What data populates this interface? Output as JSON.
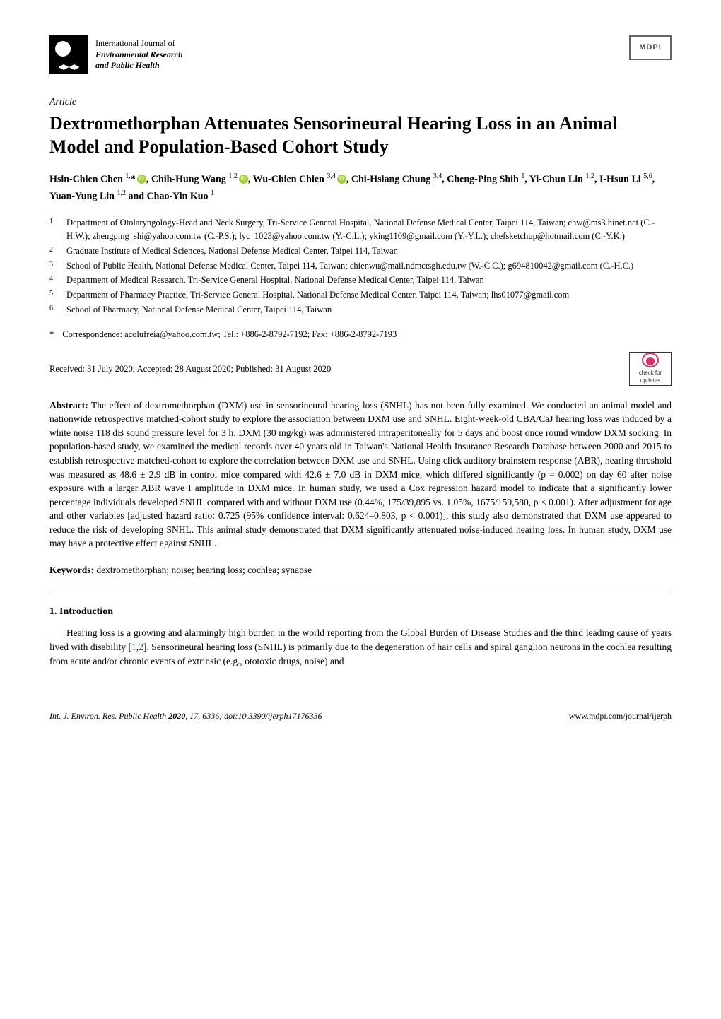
{
  "journal": {
    "line1": "International Journal of",
    "line2": "Environmental Research",
    "line3": "and Public Health",
    "publisher": "MDPI"
  },
  "article_type": "Article",
  "title": "Dextromethorphan Attenuates Sensorineural Hearing Loss in an Animal Model and Population-Based Cohort Study",
  "authors_html": "Hsin-Chien Chen <sup>1,</sup>*<span class='orcid'></span>, Chih-Hung Wang <sup>1,2</sup><span class='orcid'></span>, Wu-Chien Chien <sup>3,4</sup><span class='orcid'></span>, Chi-Hsiang Chung <sup>3,4</sup>, Cheng-Ping Shih <sup>1</sup>, Yi-Chun Lin <sup>1,2</sup>, I-Hsun Li <sup>5,6</sup>, Yuan-Yung Lin <sup>1,2</sup> and Chao-Yin Kuo <sup>1</sup>",
  "affiliations": [
    {
      "num": "1",
      "text": "Department of Otolaryngology-Head and Neck Surgery, Tri-Service General Hospital, National Defense Medical Center, Taipei 114, Taiwan; chw@ms3.hinet.net (C.-H.W.); zhengping_shi@yahoo.com.tw (C.-P.S.); lyc_1023@yahoo.com.tw (Y.-C.L.); yking1109@gmail.com (Y.-Y.L.); chefsketchup@hotmail.com (C.-Y.K.)"
    },
    {
      "num": "2",
      "text": "Graduate Institute of Medical Sciences, National Defense Medical Center, Taipei 114, Taiwan"
    },
    {
      "num": "3",
      "text": "School of Public Health, National Defense Medical Center, Taipei 114, Taiwan; chienwu@mail.ndmctsgh.edu.tw (W.-C.C.); g694810042@gmail.com (C.-H.C.)"
    },
    {
      "num": "4",
      "text": "Department of Medical Research, Tri-Service General Hospital, National Defense Medical Center, Taipei 114, Taiwan"
    },
    {
      "num": "5",
      "text": "Department of Pharmacy Practice, Tri-Service General Hospital, National Defense Medical Center, Taipei 114, Taiwan; lhs01077@gmail.com"
    },
    {
      "num": "6",
      "text": "School of Pharmacy, National Defense Medical Center, Taipei 114, Taiwan"
    }
  ],
  "correspondence": {
    "symbol": "*",
    "text": "Correspondence: acolufreia@yahoo.com.tw; Tel.: +886-2-8792-7192; Fax: +886-2-8792-7193"
  },
  "dates": "Received: 31 July 2020; Accepted: 28 August 2020; Published: 31 August 2020",
  "check_updates": "check for updates",
  "abstract": {
    "label": "Abstract:",
    "text": "The effect of dextromethorphan (DXM) use in sensorineural hearing loss (SNHL) has not been fully examined. We conducted an animal model and nationwide retrospective matched-cohort study to explore the association between DXM use and SNHL. Eight-week-old CBA/CaJ hearing loss was induced by a white noise 118 dB sound pressure level for 3 h. DXM (30 mg/kg) was administered intraperitoneally for 5 days and boost once round window DXM socking. In population-based study, we examined the medical records over 40 years old in Taiwan's National Health Insurance Research Database between 2000 and 2015 to establish retrospective matched-cohort to explore the correlation between DXM use and SNHL. Using click auditory brainstem response (ABR), hearing threshold was measured as 48.6 ± 2.9 dB in control mice compared with 42.6 ± 7.0 dB in DXM mice, which differed significantly (p = 0.002) on day 60 after noise exposure with a larger ABR wave I amplitude in DXM mice. In human study, we used a Cox regression hazard model to indicate that a significantly lower percentage individuals developed SNHL compared with and without DXM use (0.44%, 175/39,895 vs. 1.05%, 1675/159,580, p < 0.001). After adjustment for age and other variables [adjusted hazard ratio: 0.725 (95% confidence interval: 0.624–0.803, p < 0.001)], this study also demonstrated that DXM use appeared to reduce the risk of developing SNHL. This animal study demonstrated that DXM significantly attenuated noise-induced hearing loss. In human study, DXM use may have a protective effect against SNHL."
  },
  "keywords": {
    "label": "Keywords:",
    "text": "dextromethorphan; noise; hearing loss; cochlea; synapse"
  },
  "section1": {
    "heading": "1. Introduction",
    "body_html": "Hearing loss is a growing and alarmingly high burden in the world reporting from the Global Burden of Disease Studies and the third leading cause of years lived with disability [<span class='ref-link'>1</span>,<span class='ref-link'>2</span>]. Sensorineural hearing loss (SNHL) is primarily due to the degeneration of hair cells and spiral ganglion neurons in the cochlea resulting from acute and/or chronic events of extrinsic (e.g., ototoxic drugs, noise) and"
  },
  "footer": {
    "left_html": "<i>Int. J. Environ. Res. Public Health</i> <b>2020</b>, <i>17</i>, 6336; doi:10.3390/ijerph17176336",
    "right": "www.mdpi.com/journal/ijerph"
  },
  "colors": {
    "text": "#000000",
    "background": "#ffffff",
    "orcid": "#a6ce39",
    "ref_link": "#0066cc",
    "crossmark": "#d6336c"
  },
  "typography": {
    "body_font": "Palatino Linotype",
    "title_size_pt": 20,
    "body_size_pt": 10,
    "affiliation_size_pt": 9
  }
}
